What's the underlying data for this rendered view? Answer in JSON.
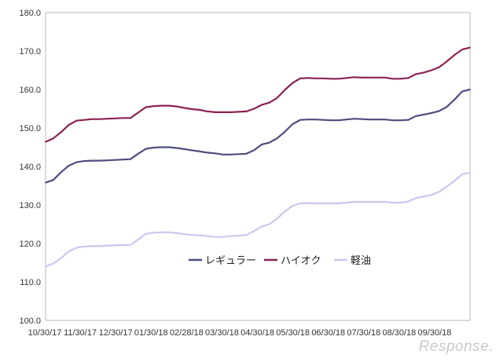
{
  "chart_data": {
    "type": "line",
    "ylim": [
      100,
      180
    ],
    "y_ticks": [
      "100.0",
      "110.0",
      "120.0",
      "130.0",
      "140.0",
      "150.0",
      "160.0",
      "170.0",
      "180.0"
    ],
    "x_ticks": [
      "10/30/17",
      "11/30/17",
      "12/30/17",
      "01/30/18",
      "02/28/18",
      "03/30/18",
      "04/30/18",
      "05/30/18",
      "06/30/18",
      "07/30/18",
      "08/30/18",
      "09/30/18"
    ],
    "grid": false,
    "legend_position": "center-bottom",
    "series": [
      {
        "name": "レギュラー",
        "color": "#4d4d80",
        "values": [
          135.8,
          136.5,
          138.5,
          140.2,
          141.1,
          141.4,
          141.5,
          141.5,
          141.6,
          141.7,
          141.8,
          141.9,
          143.3,
          144.6,
          144.9,
          145.0,
          145.0,
          144.8,
          144.5,
          144.2,
          143.9,
          143.6,
          143.4,
          143.1,
          143.1,
          143.2,
          143.3,
          144.2,
          145.7,
          146.2,
          147.3,
          149.0,
          151.0,
          152.1,
          152.2,
          152.2,
          152.1,
          152.0,
          152.0,
          152.2,
          152.4,
          152.3,
          152.2,
          152.2,
          152.2,
          152.0,
          152.0,
          152.1,
          153.1,
          153.5,
          153.9,
          154.4,
          155.5,
          157.4,
          159.5,
          160.0
        ]
      },
      {
        "name": "ハイオク",
        "color": "#8b2252",
        "values": [
          146.4,
          147.3,
          148.9,
          150.8,
          151.9,
          152.1,
          152.3,
          152.3,
          152.4,
          152.5,
          152.6,
          152.6,
          154.0,
          155.4,
          155.7,
          155.8,
          155.8,
          155.6,
          155.2,
          154.9,
          154.7,
          154.3,
          154.1,
          154.1,
          154.1,
          154.2,
          154.3,
          155.0,
          156.0,
          156.6,
          157.8,
          159.9,
          161.7,
          162.9,
          163.0,
          162.9,
          162.9,
          162.8,
          162.8,
          163.0,
          163.2,
          163.1,
          163.1,
          163.1,
          163.1,
          162.8,
          162.8,
          163.0,
          164.0,
          164.4,
          165.0,
          165.8,
          167.3,
          169.0,
          170.4,
          170.9
        ]
      },
      {
        "name": "軽油",
        "color": "#c8c8ee",
        "values": [
          114.0,
          114.8,
          116.2,
          117.9,
          118.9,
          119.2,
          119.3,
          119.3,
          119.4,
          119.5,
          119.6,
          119.6,
          121.0,
          122.5,
          122.8,
          122.9,
          122.9,
          122.7,
          122.4,
          122.2,
          122.1,
          121.9,
          121.7,
          121.7,
          121.9,
          122.0,
          122.2,
          123.2,
          124.4,
          125.0,
          126.4,
          128.3,
          129.8,
          130.4,
          130.5,
          130.4,
          130.4,
          130.4,
          130.4,
          130.6,
          130.8,
          130.8,
          130.8,
          130.8,
          130.8,
          130.6,
          130.6,
          130.9,
          131.8,
          132.2,
          132.6,
          133.4,
          134.8,
          136.3,
          138.0,
          138.4
        ]
      }
    ]
  },
  "watermark": "Response."
}
